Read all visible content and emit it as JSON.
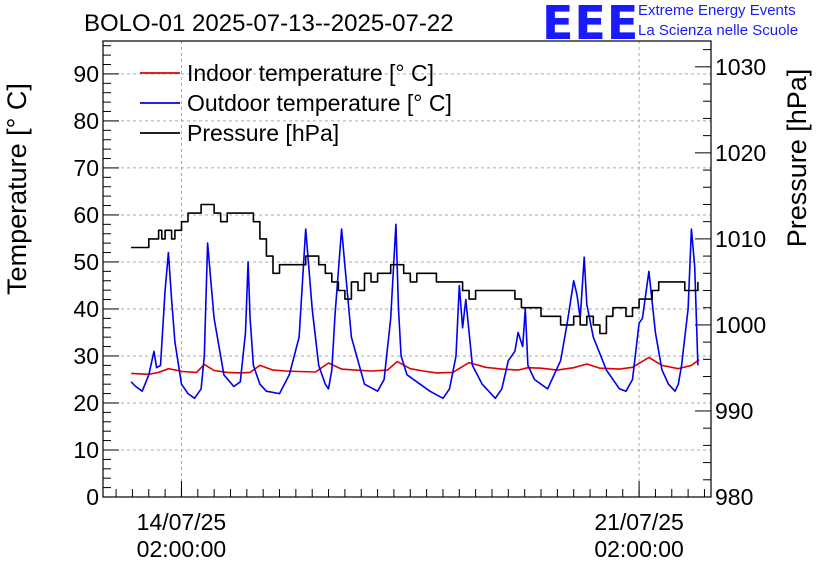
{
  "colors": {
    "indoor": "#e00000",
    "outdoor": "#0000ee",
    "pressure": "#000000",
    "logo": "#1a1aff"
  },
  "title": "BOLO-01 2025-07-13--2025-07-22",
  "logo": {
    "text": "EEE",
    "line1": "Extreme Energy Events",
    "line2": "La Scienza nelle Scuole"
  },
  "chart_data": {
    "type": "line",
    "ylabel": "Temperature [° C]",
    "y2label": "Pressure [hPa]",
    "ylim": [
      0,
      97
    ],
    "y2lim": [
      980,
      1033
    ],
    "yticks": [
      "0",
      "10",
      "20",
      "30",
      "40",
      "50",
      "60",
      "70",
      "80",
      "90"
    ],
    "y2ticks": [
      "980",
      "990",
      "1000",
      "1010",
      "1020",
      "1030"
    ],
    "xlim_days": [
      12.5,
      21.8
    ],
    "xticks": [
      {
        "day": 13.7,
        "line1": "14/07/25",
        "line2": "02:00:00"
      },
      {
        "day": 20.7,
        "line1": "21/07/25",
        "line2": "02:00:00"
      }
    ],
    "grid": true,
    "legend": "top-left",
    "series": [
      {
        "name": "Indoor temperature [° C]",
        "axis": "left",
        "x": [
          12.93,
          13.2,
          13.35,
          13.5,
          13.72,
          13.93,
          14.05,
          14.2,
          14.4,
          14.6,
          14.75,
          14.9,
          15.1,
          15.3,
          15.5,
          15.75,
          15.95,
          16.15,
          16.35,
          16.6,
          16.85,
          17.0,
          17.2,
          17.4,
          17.6,
          17.85,
          18.1,
          18.35,
          18.6,
          18.85,
          19.0,
          19.2,
          19.45,
          19.7,
          19.9,
          20.1,
          20.4,
          20.6,
          20.85,
          21.05,
          21.3,
          21.5,
          21.62
        ],
        "y": [
          26.3,
          26.1,
          26.5,
          27.3,
          26.7,
          26.5,
          28.2,
          26.9,
          26.5,
          26.4,
          26.5,
          28.0,
          27.0,
          26.8,
          26.7,
          26.6,
          28.5,
          27.2,
          27.0,
          26.8,
          27.0,
          28.8,
          27.3,
          26.8,
          26.4,
          26.5,
          28.6,
          27.6,
          27.2,
          27.0,
          27.5,
          27.4,
          27.0,
          27.5,
          28.3,
          27.4,
          27.2,
          27.6,
          29.7,
          28.0,
          27.3,
          28.0,
          29.2
        ]
      },
      {
        "name": "Outdoor temperature [° C]",
        "axis": "left",
        "x": [
          12.93,
          13.0,
          13.1,
          13.2,
          13.28,
          13.32,
          13.38,
          13.45,
          13.5,
          13.55,
          13.6,
          13.7,
          13.8,
          13.9,
          14.0,
          14.05,
          14.1,
          14.2,
          14.35,
          14.5,
          14.6,
          14.68,
          14.72,
          14.75,
          14.8,
          14.9,
          15.0,
          15.2,
          15.35,
          15.5,
          15.6,
          15.7,
          15.8,
          15.9,
          15.95,
          16.0,
          16.05,
          16.15,
          16.3,
          16.5,
          16.7,
          16.8,
          16.9,
          16.98,
          17.02,
          17.06,
          17.15,
          17.3,
          17.5,
          17.7,
          17.8,
          17.9,
          17.95,
          18.0,
          18.05,
          18.15,
          18.3,
          18.5,
          18.6,
          18.7,
          18.8,
          18.85,
          18.92,
          18.96,
          19.0,
          19.1,
          19.3,
          19.5,
          19.6,
          19.7,
          19.75,
          19.8,
          19.86,
          19.9,
          20.0,
          20.2,
          20.4,
          20.5,
          20.6,
          20.65,
          20.7,
          20.75,
          20.85,
          20.95,
          21.05,
          21.15,
          21.25,
          21.3,
          21.35,
          21.4,
          21.45,
          21.5,
          21.55,
          21.6
        ],
        "y": [
          24.5,
          23.5,
          22.5,
          26.0,
          31.0,
          27.5,
          28.0,
          44.0,
          52.0,
          42.0,
          33.0,
          24.0,
          22.0,
          21.0,
          23.0,
          30.0,
          54.0,
          38.0,
          26.0,
          23.5,
          24.5,
          35.0,
          50.0,
          38.0,
          28.0,
          24.0,
          22.5,
          22.0,
          26.0,
          34.0,
          57.0,
          40.0,
          28.0,
          24.0,
          23.0,
          27.0,
          39.0,
          57.0,
          34.0,
          24.0,
          22.5,
          25.0,
          38.0,
          58.0,
          40.0,
          30.0,
          26.0,
          24.5,
          22.5,
          21.0,
          23.0,
          30.0,
          45.0,
          36.0,
          42.0,
          28.0,
          24.0,
          21.0,
          23.0,
          29.0,
          31.0,
          35.0,
          32.0,
          40.0,
          28.0,
          25.0,
          23.0,
          29.0,
          37.0,
          46.0,
          43.0,
          38.0,
          51.0,
          41.0,
          34.0,
          27.0,
          23.0,
          22.5,
          25.0,
          31.0,
          37.0,
          38.0,
          48.0,
          35.0,
          27.0,
          24.0,
          22.5,
          24.0,
          28.0,
          34.0,
          40.0,
          57.0,
          49.0,
          28.0
        ]
      },
      {
        "name": "Pressure [hPa]",
        "axis": "right",
        "x": [
          12.93,
          13.1,
          13.2,
          13.3,
          13.35,
          13.4,
          13.45,
          13.55,
          13.6,
          13.7,
          13.8,
          13.9,
          14.0,
          14.1,
          14.2,
          14.3,
          14.4,
          14.5,
          14.6,
          14.8,
          14.9,
          15.0,
          15.1,
          15.2,
          15.3,
          15.4,
          15.6,
          15.8,
          15.9,
          16.0,
          16.1,
          16.2,
          16.3,
          16.4,
          16.5,
          16.6,
          16.7,
          16.8,
          16.9,
          17.0,
          17.1,
          17.2,
          17.3,
          17.5,
          17.6,
          17.7,
          17.9,
          18.0,
          18.1,
          18.2,
          18.4,
          18.5,
          18.6,
          18.8,
          18.9,
          19.0,
          19.2,
          19.3,
          19.5,
          19.7,
          19.8,
          19.9,
          20.0,
          20.1,
          20.2,
          20.3,
          20.5,
          20.6,
          20.7,
          20.8,
          20.9,
          21.0,
          21.1,
          21.2,
          21.4,
          21.5,
          21.6
        ],
        "y": [
          1009,
          1009,
          1010,
          1010,
          1011,
          1010,
          1011,
          1010,
          1011,
          1012,
          1013,
          1013,
          1014,
          1014,
          1013,
          1012,
          1013,
          1013,
          1013,
          1012,
          1010,
          1008,
          1006,
          1007,
          1007,
          1007,
          1008,
          1007,
          1006,
          1005,
          1004,
          1003,
          1005,
          1004,
          1006,
          1005,
          1006,
          1006,
          1007,
          1007,
          1006,
          1005,
          1006,
          1006,
          1005,
          1005,
          1005,
          1004,
          1003,
          1004,
          1004,
          1004,
          1004,
          1003,
          1002,
          1002,
          1001,
          1001,
          1000,
          1001,
          1000,
          1001,
          1000,
          999,
          1001,
          1002,
          1001,
          1002,
          1003,
          1003,
          1004,
          1005,
          1005,
          1005,
          1004,
          1004,
          1005
        ]
      }
    ]
  }
}
